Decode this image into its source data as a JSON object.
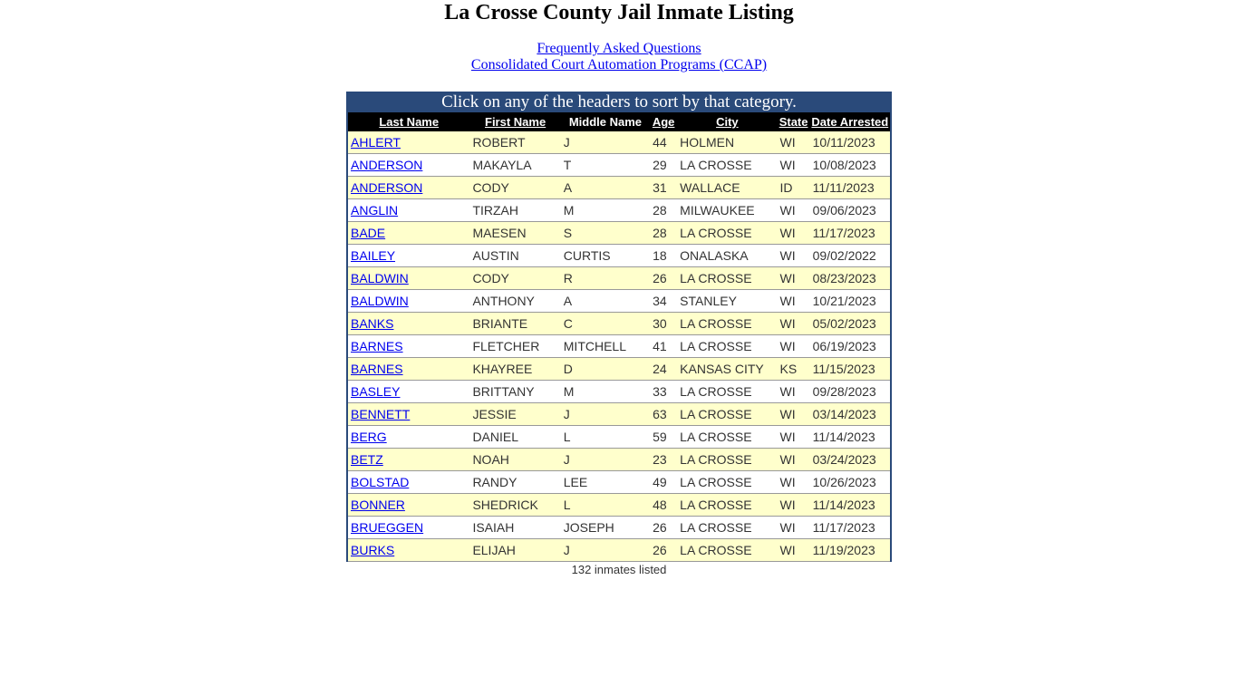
{
  "title": "La Crosse County Jail Inmate Listing",
  "links": [
    "Frequently Asked Questions",
    "Consolidated Court Automation Programs (CCAP)"
  ],
  "banner": "Click on any of the headers to sort by that category.",
  "headers": [
    "Last Name",
    "First Name",
    "Middle Name",
    "Age",
    "City",
    "State",
    "Date Arrested"
  ],
  "rows": [
    [
      "AHLERT",
      "ROBERT",
      "J",
      "44",
      "HOLMEN",
      "WI",
      "10/11/2023"
    ],
    [
      "ANDERSON",
      "MAKAYLA",
      "T",
      "29",
      "LA CROSSE",
      "WI",
      "10/08/2023"
    ],
    [
      "ANDERSON",
      "CODY",
      "A",
      "31",
      "WALLACE",
      "ID",
      "11/11/2023"
    ],
    [
      "ANGLIN",
      "TIRZAH",
      "M",
      "28",
      "MILWAUKEE",
      "WI",
      "09/06/2023"
    ],
    [
      "BADE",
      "MAESEN",
      "S",
      "28",
      "LA CROSSE",
      "WI",
      "11/17/2023"
    ],
    [
      "BAILEY",
      "AUSTIN",
      "CURTIS",
      "18",
      "ONALASKA",
      "WI",
      "09/02/2022"
    ],
    [
      "BALDWIN",
      "CODY",
      "R",
      "26",
      "LA CROSSE",
      "WI",
      "08/23/2023"
    ],
    [
      "BALDWIN",
      "ANTHONY",
      "A",
      "34",
      "STANLEY",
      "WI",
      "10/21/2023"
    ],
    [
      "BANKS",
      "BRIANTE",
      "C",
      "30",
      "LA CROSSE",
      "WI",
      "05/02/2023"
    ],
    [
      "BARNES",
      "FLETCHER",
      "MITCHELL",
      "41",
      "LA CROSSE",
      "WI",
      "06/19/2023"
    ],
    [
      "BARNES",
      "KHAYREE",
      "D",
      "24",
      "KANSAS CITY",
      "KS",
      "11/15/2023"
    ],
    [
      "BASLEY",
      "BRITTANY",
      "M",
      "33",
      "LA CROSSE",
      "WI",
      "09/28/2023"
    ],
    [
      "BENNETT",
      "JESSIE",
      "J",
      "63",
      "LA CROSSE",
      "WI",
      "03/14/2023"
    ],
    [
      "BERG",
      "DANIEL",
      "L",
      "59",
      "LA CROSSE",
      "WI",
      "11/14/2023"
    ],
    [
      "BETZ",
      "NOAH",
      "J",
      "23",
      "LA CROSSE",
      "WI",
      "03/24/2023"
    ],
    [
      "BOLSTAD",
      "RANDY",
      "LEE",
      "49",
      "LA CROSSE",
      "WI",
      "10/26/2023"
    ],
    [
      "BONNER",
      "SHEDRICK",
      "L",
      "48",
      "LA CROSSE",
      "WI",
      "11/14/2023"
    ],
    [
      "BRUEGGEN",
      "ISAIAH",
      "JOSEPH",
      "26",
      "LA CROSSE",
      "WI",
      "11/17/2023"
    ],
    [
      "BURKS",
      "ELIJAH",
      "J",
      "26",
      "LA CROSSE",
      "WI",
      "11/19/2023"
    ]
  ],
  "count": "132 inmates listed"
}
